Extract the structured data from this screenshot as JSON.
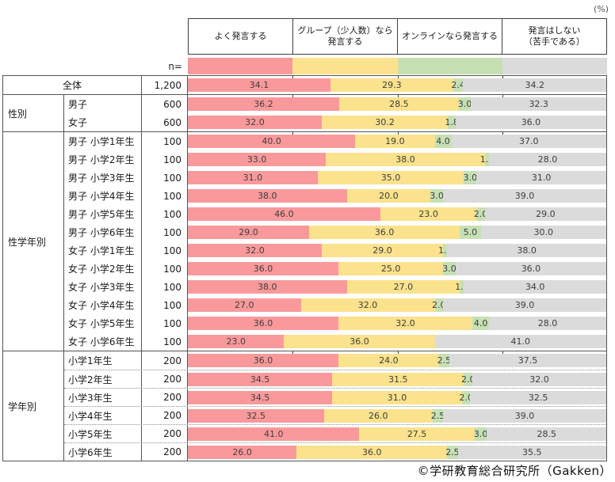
{
  "page": {
    "percent_label": "(%)",
    "n_label": "n=",
    "footer": "©学研教育総合研究所（Gakken）"
  },
  "chart_data": {
    "type": "bar",
    "orientation": "horizontal",
    "stacked": true,
    "unit": "%",
    "xlim": [
      0,
      100
    ],
    "legend_position": "top",
    "columns": [
      {
        "label": "よく発言する",
        "color": "#FA999B"
      },
      {
        "label": "グループ（少人数）なら\n発言する",
        "color": "#FBE28C"
      },
      {
        "label": "オンラインなら発言する",
        "color": "#C6E0B4"
      },
      {
        "label": "発言はしない\n（苦手である）",
        "color": "#DBDBDB"
      }
    ],
    "sections": [
      {
        "group": "",
        "merged": true,
        "rows": [
          {
            "label": "全体",
            "n": "1,200",
            "values": [
              34.1,
              29.3,
              2.4,
              34.2
            ]
          }
        ]
      },
      {
        "group": "性別",
        "rows": [
          {
            "label": "男子",
            "n": "600",
            "values": [
              36.2,
              28.5,
              3.0,
              32.3
            ]
          },
          {
            "label": "女子",
            "n": "600",
            "values": [
              32.0,
              30.2,
              1.8,
              36.0
            ]
          }
        ]
      },
      {
        "group": "性学年別",
        "rows": [
          {
            "label": "男子 小学1年生",
            "n": "100",
            "values": [
              40.0,
              19.0,
              4.0,
              37.0
            ]
          },
          {
            "label": "男子 小学2年生",
            "n": "100",
            "values": [
              33.0,
              38.0,
              1.0,
              28.0
            ]
          },
          {
            "label": "男子 小学3年生",
            "n": "100",
            "values": [
              31.0,
              35.0,
              3.0,
              31.0
            ]
          },
          {
            "label": "男子 小学4年生",
            "n": "100",
            "values": [
              38.0,
              20.0,
              3.0,
              39.0
            ]
          },
          {
            "label": "男子 小学5年生",
            "n": "100",
            "values": [
              46.0,
              23.0,
              2.0,
              29.0
            ]
          },
          {
            "label": "男子 小学6年生",
            "n": "100",
            "values": [
              29.0,
              36.0,
              5.0,
              30.0
            ]
          },
          {
            "label": "女子 小学1年生",
            "n": "100",
            "values": [
              32.0,
              29.0,
              1.0,
              38.0
            ]
          },
          {
            "label": "女子 小学2年生",
            "n": "100",
            "values": [
              36.0,
              25.0,
              3.0,
              36.0
            ]
          },
          {
            "label": "女子 小学3年生",
            "n": "100",
            "values": [
              38.0,
              27.0,
              1.0,
              34.0
            ]
          },
          {
            "label": "女子 小学4年生",
            "n": "100",
            "values": [
              27.0,
              32.0,
              2.0,
              39.0
            ]
          },
          {
            "label": "女子 小学5年生",
            "n": "100",
            "values": [
              36.0,
              32.0,
              4.0,
              28.0
            ]
          },
          {
            "label": "女子 小学6年生",
            "n": "100",
            "values": [
              23.0,
              36.0,
              0.0,
              41.0
            ]
          }
        ]
      },
      {
        "group": "学年別",
        "dotted": true,
        "rows": [
          {
            "label": "小学1年生",
            "n": "200",
            "values": [
              36.0,
              24.0,
              2.5,
              37.5
            ]
          },
          {
            "label": "小学2年生",
            "n": "200",
            "values": [
              34.5,
              31.5,
              2.0,
              32.0
            ]
          },
          {
            "label": "小学3年生",
            "n": "200",
            "values": [
              34.5,
              31.0,
              2.0,
              32.5
            ]
          },
          {
            "label": "小学4年生",
            "n": "200",
            "values": [
              32.5,
              26.0,
              2.5,
              39.0
            ]
          },
          {
            "label": "小学5年生",
            "n": "200",
            "values": [
              41.0,
              27.5,
              3.0,
              28.5
            ]
          },
          {
            "label": "小学6年生",
            "n": "200",
            "values": [
              26.0,
              36.0,
              2.5,
              35.5
            ]
          }
        ]
      }
    ]
  }
}
